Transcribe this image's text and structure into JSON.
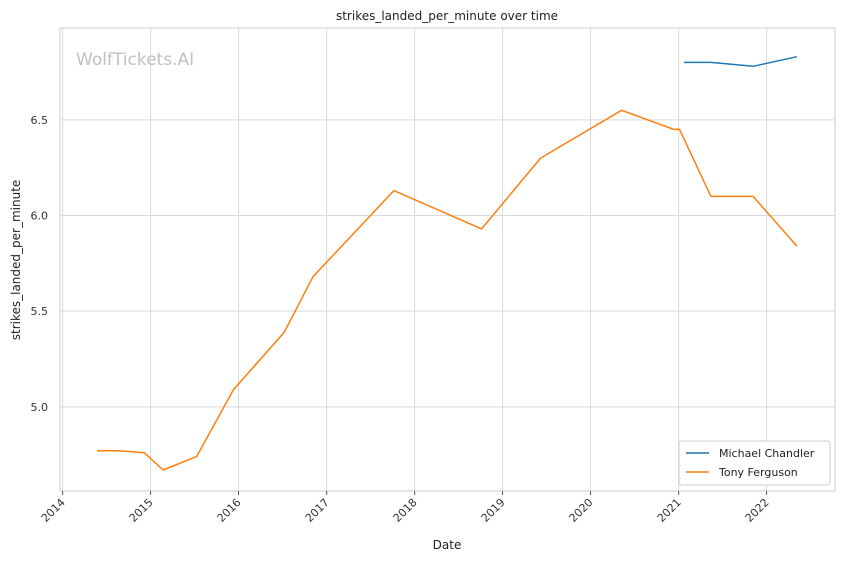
{
  "chart_data": {
    "type": "line",
    "title": "strikes_landed_per_minute over time",
    "xlabel": "Date",
    "ylabel": "strikes_landed_per_minute",
    "x_ticks": [
      "2014",
      "2015",
      "2016",
      "2017",
      "2018",
      "2019",
      "2020",
      "2021",
      "2022"
    ],
    "y_ticks": [
      "5.0",
      "5.5",
      "6.0",
      "6.5"
    ],
    "ylim": [
      4.56,
      6.98
    ],
    "xlim": [
      "2013-12-21",
      "2022-10-12"
    ],
    "grid": true,
    "legend_position": "bottom-right",
    "watermark": "WolfTickets.AI",
    "series": [
      {
        "name": "Michael Chandler",
        "color": "#1f77b4",
        "points": [
          {
            "x": "2021-01-23",
            "y": 6.8
          },
          {
            "x": "2021-05-15",
            "y": 6.8
          },
          {
            "x": "2021-11-06",
            "y": 6.78
          },
          {
            "x": "2022-05-07",
            "y": 6.83
          }
        ]
      },
      {
        "name": "Tony Ferguson",
        "color": "#ff7f0e",
        "points": [
          {
            "x": "2014-05-24",
            "y": 4.77
          },
          {
            "x": "2014-08-23",
            "y": 4.77
          },
          {
            "x": "2014-12-06",
            "y": 4.76
          },
          {
            "x": "2015-02-22",
            "y": 4.67
          },
          {
            "x": "2015-07-11",
            "y": 4.74
          },
          {
            "x": "2015-12-11",
            "y": 5.09
          },
          {
            "x": "2016-07-09",
            "y": 5.39
          },
          {
            "x": "2016-11-05",
            "y": 5.68
          },
          {
            "x": "2017-10-07",
            "y": 6.13
          },
          {
            "x": "2018-10-06",
            "y": 5.93
          },
          {
            "x": "2019-06-08",
            "y": 6.3
          },
          {
            "x": "2020-05-09",
            "y": 6.55
          },
          {
            "x": "2020-12-12",
            "y": 6.45
          },
          {
            "x": "2021-01-05",
            "y": 6.45
          },
          {
            "x": "2021-05-15",
            "y": 6.1
          },
          {
            "x": "2021-11-06",
            "y": 6.1
          },
          {
            "x": "2022-05-07",
            "y": 5.84
          }
        ]
      }
    ]
  }
}
